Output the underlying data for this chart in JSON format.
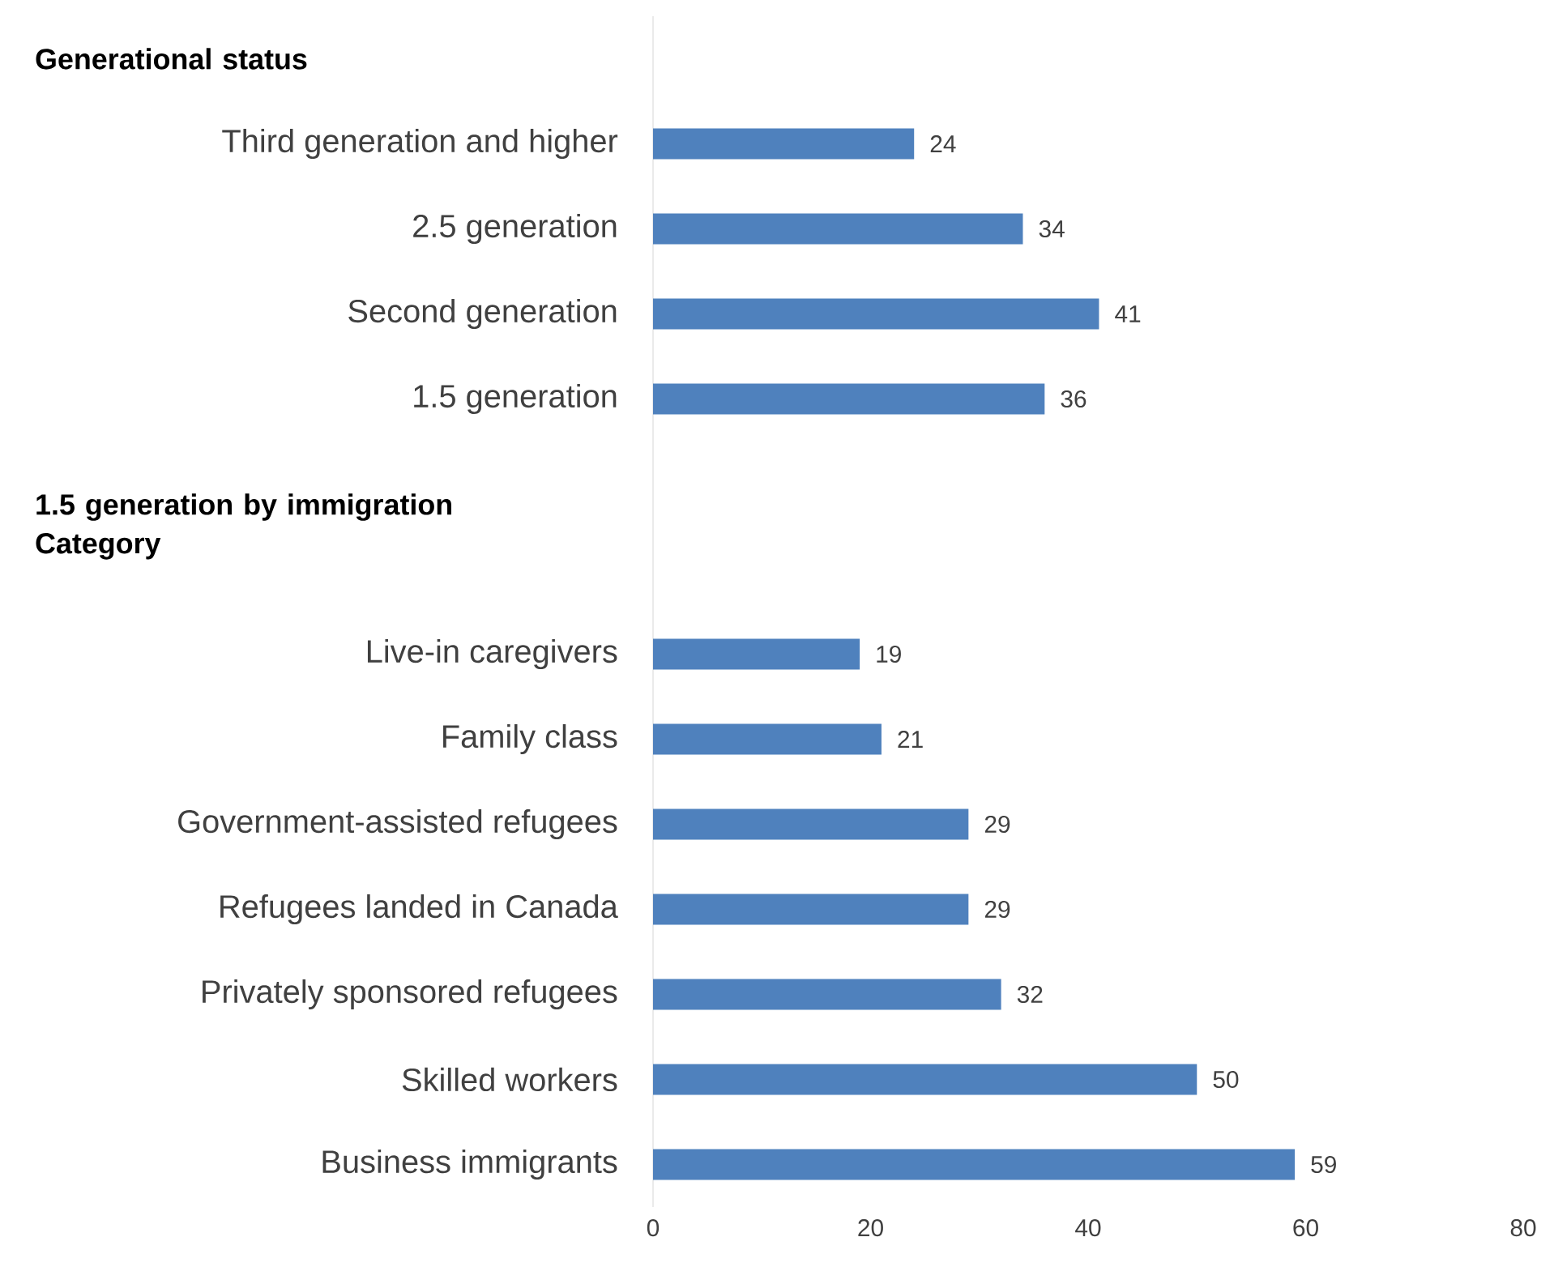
{
  "chart_data": {
    "type": "bar",
    "orientation": "horizontal",
    "color": "#4f81bd",
    "data_labels": true,
    "categories": [
      null,
      "Third generation and higher",
      "2.5 generation",
      "Second generation",
      "1.5 generation",
      null,
      null,
      "Live-in caregivers",
      "Family class",
      "Government-assisted refugees",
      "Refugees landed in Canada",
      "Privately sponsored refugees",
      "Skilled workers",
      "Business immigrants"
    ],
    "values": [
      null,
      24,
      34,
      41,
      36,
      null,
      null,
      19,
      21,
      29,
      29,
      32,
      50,
      59
    ],
    "annotations": [
      "Generational status",
      "1.5 generation by immigration Category"
    ],
    "xlim": [
      0,
      80
    ],
    "xticks": [
      0,
      20,
      40,
      60,
      80
    ]
  }
}
